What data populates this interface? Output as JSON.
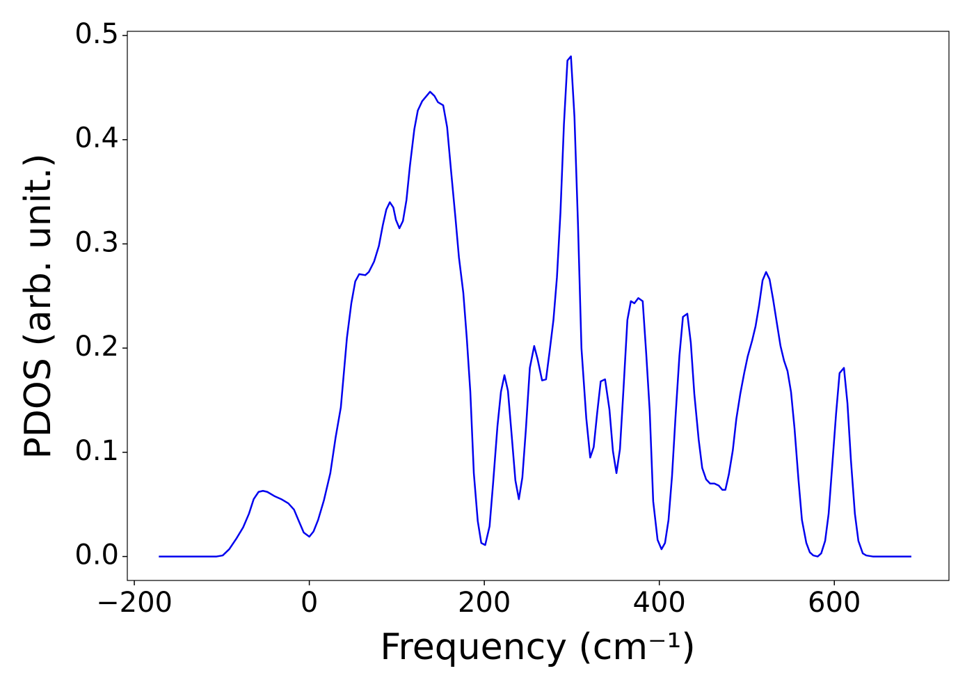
{
  "chart_data": {
    "type": "line",
    "xlabel": "Frequency (cm⁻¹)",
    "ylabel": "PDOS (arb. unit.)",
    "xlim": [
      -208,
      731
    ],
    "ylim": [
      -0.023,
      0.504
    ],
    "xticks": [
      {
        "value": -200,
        "label": "−200"
      },
      0,
      200,
      400,
      600
    ],
    "yticks": [
      {
        "value": 0,
        "label": "0.0"
      },
      0.1,
      0.2,
      0.3,
      0.4,
      0.5
    ],
    "series": [
      {
        "color": "#0000ee",
        "x": [
          -172,
          -140,
          -115,
          -106,
          -99,
          -91.5,
          -83.5,
          -75.6,
          -69,
          -63.6,
          -58,
          -53,
          -48,
          -40,
          -32,
          -24,
          -17.5,
          -12,
          -6.4,
          0,
          4.8,
          10,
          16.7,
          24,
          30,
          36,
          43,
          48,
          52.5,
          57,
          64,
          68,
          74,
          79.5,
          84,
          88,
          92,
          96,
          99,
          103,
          107,
          111,
          115,
          120,
          124,
          129,
          134,
          138,
          143,
          147,
          153,
          157.5,
          162,
          167,
          171,
          176,
          180,
          184,
          188,
          192.5,
          196.5,
          201,
          206,
          210,
          215,
          219,
          223,
          227,
          231,
          235.5,
          239.5,
          243.5,
          247.5,
          252,
          257,
          261,
          266,
          270.5,
          274.5,
          279,
          283,
          287,
          291,
          295,
          299,
          303,
          307,
          311,
          316.5,
          321,
          325,
          329,
          333,
          338,
          343,
          347,
          351,
          355,
          359,
          363.5,
          367.5,
          371.5,
          376,
          381,
          385,
          389,
          393,
          398,
          402.5,
          406.5,
          410.5,
          414.5,
          418.5,
          423,
          427,
          432,
          436,
          440,
          445,
          449,
          453.5,
          458,
          463,
          468,
          472,
          475.5,
          479.5,
          484,
          488,
          492.5,
          497,
          501,
          506,
          510,
          514,
          518,
          522,
          526,
          530,
          534.5,
          538.5,
          542.5,
          546.5,
          550.5,
          554.5,
          559,
          563,
          568,
          572,
          576,
          581,
          585,
          589.5,
          593.5,
          597.5,
          602,
          606,
          611,
          615,
          619,
          623.5,
          627.5,
          632.5,
          636.5,
          644,
          688
        ],
        "values": [
          0,
          0,
          0,
          0,
          0.001,
          0.007,
          0.017,
          0.028,
          0.041,
          0.055,
          0.062,
          0.063,
          0.062,
          0.058,
          0.055,
          0.051,
          0.045,
          0.034,
          0.023,
          0.019,
          0.024,
          0.035,
          0.054,
          0.08,
          0.114,
          0.143,
          0.21,
          0.243,
          0.264,
          0.271,
          0.27,
          0.273,
          0.283,
          0.298,
          0.318,
          0.333,
          0.34,
          0.335,
          0.323,
          0.315,
          0.322,
          0.342,
          0.375,
          0.41,
          0.428,
          0.437,
          0.442,
          0.446,
          0.442,
          0.436,
          0.433,
          0.412,
          0.37,
          0.325,
          0.287,
          0.253,
          0.209,
          0.158,
          0.08,
          0.034,
          0.013,
          0.011,
          0.029,
          0.07,
          0.125,
          0.158,
          0.174,
          0.159,
          0.119,
          0.073,
          0.055,
          0.076,
          0.122,
          0.181,
          0.202,
          0.189,
          0.169,
          0.17,
          0.196,
          0.227,
          0.268,
          0.33,
          0.415,
          0.476,
          0.48,
          0.422,
          0.32,
          0.2,
          0.133,
          0.095,
          0.105,
          0.138,
          0.168,
          0.17,
          0.141,
          0.101,
          0.08,
          0.103,
          0.16,
          0.227,
          0.245,
          0.243,
          0.248,
          0.245,
          0.195,
          0.14,
          0.053,
          0.016,
          0.007,
          0.013,
          0.035,
          0.077,
          0.134,
          0.193,
          0.23,
          0.233,
          0.205,
          0.156,
          0.112,
          0.085,
          0.074,
          0.07,
          0.07,
          0.068,
          0.064,
          0.064,
          0.079,
          0.102,
          0.132,
          0.156,
          0.176,
          0.192,
          0.207,
          0.221,
          0.241,
          0.265,
          0.273,
          0.266,
          0.247,
          0.223,
          0.202,
          0.188,
          0.178,
          0.158,
          0.123,
          0.074,
          0.035,
          0.013,
          0.004,
          0.001,
          0,
          0.003,
          0.015,
          0.041,
          0.086,
          0.137,
          0.176,
          0.181,
          0.147,
          0.092,
          0.041,
          0.015,
          0.003,
          0.001,
          0,
          0
        ]
      }
    ]
  }
}
